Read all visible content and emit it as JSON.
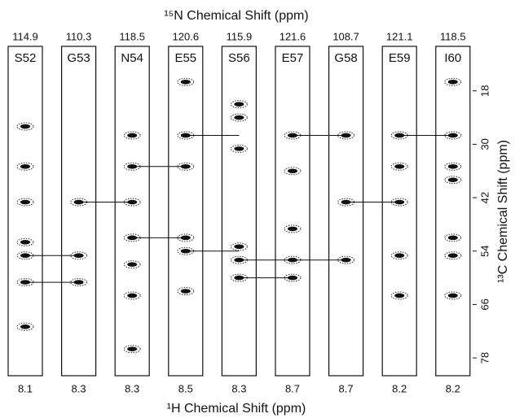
{
  "chart_data": {
    "type": "nmr-strips",
    "title": "¹⁵N Chemical Shift (ppm)",
    "x_label": "¹H Chemical Shift (ppm)",
    "y_label": "¹³C Chemical Shift (ppm)",
    "ylim": [
      8,
      82
    ],
    "y_inverted": true,
    "yticks": [
      18,
      30,
      42,
      54,
      66,
      78
    ],
    "strips": [
      {
        "label": "S52",
        "n15": 114.9,
        "h1": 8.1,
        "peaks": [
          26,
          35,
          43,
          52,
          55,
          61,
          71
        ],
        "links": [
          55,
          61
        ]
      },
      {
        "label": "G53",
        "n15": 110.3,
        "h1": 8.3,
        "peaks": [
          43,
          55,
          61
        ],
        "links": [
          43
        ]
      },
      {
        "label": "N54",
        "n15": 118.5,
        "h1": 8.3,
        "peaks": [
          28,
          35,
          43,
          51,
          57,
          64,
          76
        ],
        "links": [
          35,
          51
        ]
      },
      {
        "label": "E55",
        "n15": 120.6,
        "h1": 8.5,
        "peaks": [
          16,
          28,
          35,
          51,
          54,
          63
        ],
        "links": [
          28,
          54
        ]
      },
      {
        "label": "S56",
        "n15": 115.9,
        "h1": 8.3,
        "peaks": [
          21,
          24,
          31,
          53,
          56,
          60
        ],
        "links": [
          56,
          60
        ]
      },
      {
        "label": "E57",
        "n15": 121.6,
        "h1": 8.7,
        "peaks": [
          28,
          36,
          49,
          56,
          60
        ],
        "links": [
          28,
          56
        ]
      },
      {
        "label": "G58",
        "n15": 108.7,
        "h1": 8.7,
        "peaks": [
          28,
          43,
          56
        ],
        "links": [
          43
        ]
      },
      {
        "label": "E59",
        "n15": 121.1,
        "h1": 8.2,
        "peaks": [
          28,
          35,
          43,
          55,
          64
        ],
        "links": [
          28
        ]
      },
      {
        "label": "I60",
        "n15": 118.5,
        "h1": 8.2,
        "peaks": [
          16,
          28,
          35,
          38,
          51,
          55,
          64
        ],
        "links": []
      }
    ]
  }
}
